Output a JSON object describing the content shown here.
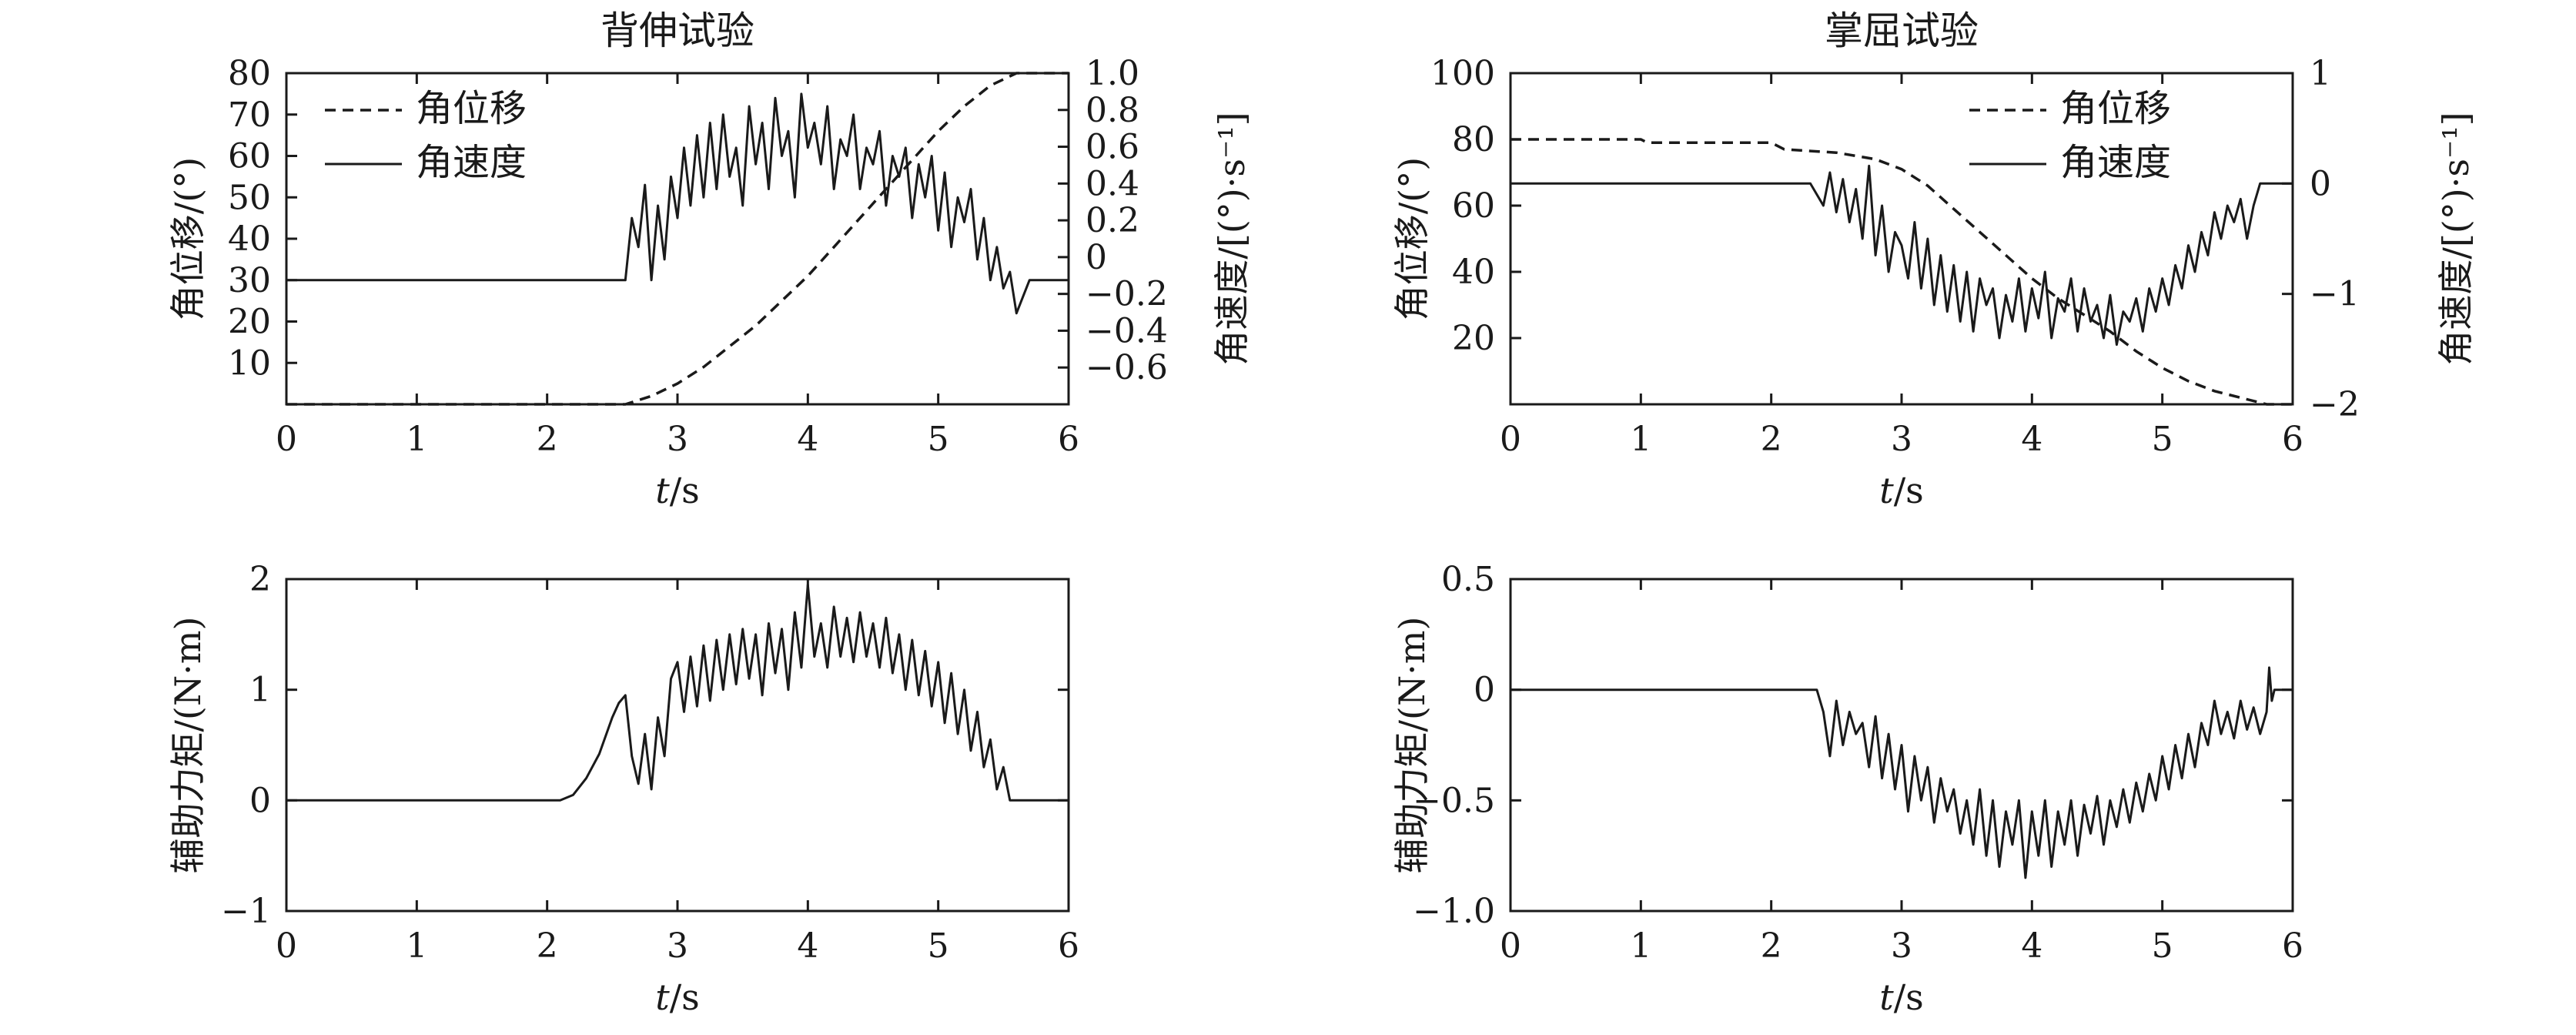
{
  "chart_data": [
    {
      "type": "line",
      "title": "背伸试验",
      "xlabel": "t/s",
      "ylabel": "角位移/(°)",
      "ylabel_right": "角速度/[(°)·s⁻¹]",
      "xlim": [
        0,
        6
      ],
      "ylim": [
        0,
        80
      ],
      "ylim_right": [
        -0.8,
        1.0
      ],
      "x_ticks": [
        "0",
        "1",
        "2",
        "3",
        "4",
        "5",
        "6"
      ],
      "y_ticks": [
        "10",
        "20",
        "30",
        "40",
        "50",
        "60",
        "70",
        "80"
      ],
      "y_ticks_right": [
        "−0.6",
        "−0.4",
        "−0.2",
        "0",
        "0.2",
        "0.4",
        "0.6",
        "0.8",
        "1.0"
      ],
      "grid": false,
      "legend_position": "top-left",
      "series": [
        {
          "name": "角位移",
          "style": "dashed",
          "axis": "left",
          "x": [
            0,
            2.6,
            2.8,
            3.0,
            3.2,
            3.4,
            3.6,
            3.8,
            4.0,
            4.2,
            4.4,
            4.6,
            4.8,
            5.0,
            5.2,
            5.4,
            5.6,
            6.0
          ],
          "y": [
            0,
            0,
            2,
            5,
            9,
            14,
            19,
            25,
            31,
            38,
            45,
            52,
            59,
            66,
            72,
            77,
            80,
            80
          ]
        },
        {
          "name": "角速度",
          "style": "solid",
          "axis": "left",
          "x": [
            0,
            2.6,
            2.65,
            2.7,
            2.75,
            2.8,
            2.85,
            2.9,
            2.95,
            3.0,
            3.05,
            3.1,
            3.15,
            3.2,
            3.25,
            3.3,
            3.35,
            3.4,
            3.45,
            3.5,
            3.55,
            3.6,
            3.65,
            3.7,
            3.75,
            3.8,
            3.85,
            3.9,
            3.95,
            4.0,
            4.05,
            4.1,
            4.15,
            4.2,
            4.25,
            4.3,
            4.35,
            4.4,
            4.45,
            4.5,
            4.55,
            4.6,
            4.65,
            4.7,
            4.75,
            4.8,
            4.85,
            4.9,
            4.95,
            5.0,
            5.05,
            5.1,
            5.15,
            5.2,
            5.25,
            5.3,
            5.35,
            5.4,
            5.45,
            5.5,
            5.55,
            5.6,
            5.7,
            6.0
          ],
          "y": [
            30,
            30,
            45,
            38,
            53,
            30,
            48,
            35,
            55,
            45,
            62,
            48,
            65,
            50,
            68,
            52,
            70,
            55,
            62,
            48,
            72,
            58,
            68,
            52,
            74,
            60,
            66,
            50,
            75,
            62,
            68,
            58,
            72,
            52,
            64,
            60,
            70,
            52,
            62,
            58,
            66,
            48,
            60,
            55,
            62,
            45,
            58,
            50,
            60,
            42,
            56,
            38,
            50,
            44,
            52,
            35,
            45,
            30,
            38,
            28,
            32,
            22,
            30,
            30
          ]
        }
      ]
    },
    {
      "type": "line",
      "title": "掌屈试验",
      "xlabel": "t/s",
      "ylabel": "角位移/(°)",
      "ylabel_right": "角速度/[(°)·s⁻¹]",
      "xlim": [
        0,
        6
      ],
      "ylim": [
        0,
        100
      ],
      "ylim_right": [
        -2,
        1
      ],
      "x_ticks": [
        "0",
        "1",
        "2",
        "3",
        "4",
        "5",
        "6"
      ],
      "y_ticks": [
        "20",
        "40",
        "60",
        "80",
        "100"
      ],
      "y_ticks_right": [
        "−2",
        "−1",
        "0",
        "1"
      ],
      "grid": false,
      "legend_position": "top-right",
      "series": [
        {
          "name": "角位移",
          "style": "dashed",
          "axis": "left",
          "x": [
            0,
            1.0,
            1.05,
            2.0,
            2.1,
            2.5,
            2.8,
            3.0,
            3.2,
            3.4,
            3.6,
            3.8,
            4.0,
            4.2,
            4.4,
            4.6,
            4.8,
            5.0,
            5.2,
            5.4,
            5.6,
            5.8,
            6.0
          ],
          "y": [
            80,
            80,
            79,
            79,
            77,
            76,
            74,
            71,
            66,
            59,
            52,
            45,
            38,
            32,
            27,
            22,
            16,
            11,
            7,
            4,
            2,
            0,
            0
          ]
        },
        {
          "name": "角速度",
          "style": "solid",
          "axis": "left",
          "x": [
            0,
            2.3,
            2.4,
            2.45,
            2.5,
            2.55,
            2.6,
            2.65,
            2.7,
            2.75,
            2.8,
            2.85,
            2.9,
            2.95,
            3.0,
            3.05,
            3.1,
            3.15,
            3.2,
            3.25,
            3.3,
            3.35,
            3.4,
            3.45,
            3.5,
            3.55,
            3.6,
            3.65,
            3.7,
            3.75,
            3.8,
            3.85,
            3.9,
            3.95,
            4.0,
            4.05,
            4.1,
            4.15,
            4.2,
            4.25,
            4.3,
            4.35,
            4.4,
            4.45,
            4.5,
            4.55,
            4.6,
            4.65,
            4.7,
            4.75,
            4.8,
            4.85,
            4.9,
            4.95,
            5.0,
            5.05,
            5.1,
            5.15,
            5.2,
            5.25,
            5.3,
            5.35,
            5.4,
            5.45,
            5.5,
            5.55,
            5.6,
            5.65,
            5.7,
            5.75,
            5.8,
            6.0
          ],
          "y": [
            66.7,
            66.7,
            60,
            70,
            58,
            68,
            55,
            65,
            50,
            72,
            45,
            60,
            40,
            52,
            48,
            38,
            55,
            35,
            50,
            30,
            45,
            28,
            42,
            25,
            40,
            22,
            38,
            30,
            35,
            20,
            33,
            25,
            38,
            22,
            35,
            26,
            40,
            20,
            32,
            28,
            38,
            22,
            35,
            25,
            30,
            20,
            33,
            18,
            28,
            25,
            32,
            22,
            35,
            28,
            38,
            30,
            42,
            35,
            48,
            40,
            52,
            45,
            58,
            50,
            60,
            55,
            62,
            50,
            60,
            66.7,
            66.7,
            66.7
          ]
        }
      ]
    },
    {
      "type": "line",
      "title": "",
      "xlabel": "t/s",
      "ylabel": "辅助力矩/(N·m)",
      "xlim": [
        0,
        6
      ],
      "ylim": [
        -1,
        2
      ],
      "x_ticks": [
        "0",
        "1",
        "2",
        "3",
        "4",
        "5",
        "6"
      ],
      "y_ticks": [
        "−1",
        "0",
        "1",
        "2"
      ],
      "grid": false,
      "series": [
        {
          "name": "",
          "style": "solid",
          "x": [
            0,
            2.1,
            2.2,
            2.3,
            2.4,
            2.5,
            2.55,
            2.6,
            2.65,
            2.7,
            2.75,
            2.8,
            2.85,
            2.9,
            2.95,
            3.0,
            3.05,
            3.1,
            3.15,
            3.2,
            3.25,
            3.3,
            3.35,
            3.4,
            3.45,
            3.5,
            3.55,
            3.6,
            3.65,
            3.7,
            3.75,
            3.8,
            3.85,
            3.9,
            3.95,
            4.0,
            4.05,
            4.1,
            4.15,
            4.2,
            4.25,
            4.3,
            4.35,
            4.4,
            4.45,
            4.5,
            4.55,
            4.6,
            4.65,
            4.7,
            4.75,
            4.8,
            4.85,
            4.9,
            4.95,
            5.0,
            5.05,
            5.1,
            5.15,
            5.2,
            5.25,
            5.3,
            5.35,
            5.4,
            5.45,
            5.5,
            5.55,
            6.0
          ],
          "y": [
            0,
            0,
            0.05,
            0.2,
            0.42,
            0.75,
            0.88,
            0.95,
            0.4,
            0.15,
            0.6,
            0.1,
            0.75,
            0.4,
            1.1,
            1.25,
            0.8,
            1.3,
            0.85,
            1.4,
            0.9,
            1.45,
            1.0,
            1.5,
            1.05,
            1.55,
            1.1,
            1.5,
            0.95,
            1.6,
            1.15,
            1.55,
            1.0,
            1.7,
            1.2,
            1.95,
            1.3,
            1.6,
            1.2,
            1.75,
            1.3,
            1.65,
            1.25,
            1.7,
            1.3,
            1.6,
            1.2,
            1.65,
            1.15,
            1.5,
            1.0,
            1.45,
            0.95,
            1.35,
            0.85,
            1.25,
            0.7,
            1.15,
            0.6,
            1.0,
            0.45,
            0.8,
            0.3,
            0.55,
            0.1,
            0.3,
            0.0,
            0.0
          ]
        }
      ]
    },
    {
      "type": "line",
      "title": "",
      "xlabel": "t/s",
      "ylabel": "辅助力矩/(N·m)",
      "xlim": [
        0,
        6
      ],
      "ylim": [
        -1.0,
        0.5
      ],
      "x_ticks": [
        "0",
        "1",
        "2",
        "3",
        "4",
        "5",
        "6"
      ],
      "y_ticks": [
        "−1.0",
        "−0.5",
        "0",
        "0.5"
      ],
      "grid": false,
      "series": [
        {
          "name": "",
          "style": "solid",
          "x": [
            0,
            2.35,
            2.4,
            2.45,
            2.5,
            2.55,
            2.6,
            2.65,
            2.7,
            2.75,
            2.8,
            2.85,
            2.9,
            2.95,
            3.0,
            3.05,
            3.1,
            3.15,
            3.2,
            3.25,
            3.3,
            3.35,
            3.4,
            3.45,
            3.5,
            3.55,
            3.6,
            3.65,
            3.7,
            3.75,
            3.8,
            3.85,
            3.9,
            3.95,
            4.0,
            4.05,
            4.1,
            4.15,
            4.2,
            4.25,
            4.3,
            4.35,
            4.4,
            4.45,
            4.5,
            4.55,
            4.6,
            4.65,
            4.7,
            4.75,
            4.8,
            4.85,
            4.9,
            4.95,
            5.0,
            5.05,
            5.1,
            5.15,
            5.2,
            5.25,
            5.3,
            5.35,
            5.4,
            5.45,
            5.5,
            5.55,
            5.6,
            5.65,
            5.7,
            5.75,
            5.8,
            5.82,
            5.84,
            5.86,
            6.0
          ],
          "y": [
            0,
            0,
            -0.1,
            -0.3,
            -0.05,
            -0.25,
            -0.1,
            -0.2,
            -0.15,
            -0.35,
            -0.12,
            -0.4,
            -0.2,
            -0.45,
            -0.25,
            -0.55,
            -0.3,
            -0.5,
            -0.35,
            -0.6,
            -0.4,
            -0.55,
            -0.45,
            -0.65,
            -0.5,
            -0.7,
            -0.45,
            -0.75,
            -0.5,
            -0.8,
            -0.55,
            -0.7,
            -0.5,
            -0.85,
            -0.55,
            -0.75,
            -0.5,
            -0.8,
            -0.55,
            -0.7,
            -0.5,
            -0.75,
            -0.52,
            -0.65,
            -0.48,
            -0.7,
            -0.5,
            -0.62,
            -0.45,
            -0.6,
            -0.42,
            -0.55,
            -0.38,
            -0.5,
            -0.3,
            -0.45,
            -0.25,
            -0.4,
            -0.2,
            -0.35,
            -0.15,
            -0.25,
            -0.05,
            -0.2,
            -0.1,
            -0.22,
            -0.05,
            -0.18,
            -0.08,
            -0.2,
            -0.1,
            0.1,
            -0.05,
            0.0,
            0.0
          ]
        }
      ]
    }
  ]
}
